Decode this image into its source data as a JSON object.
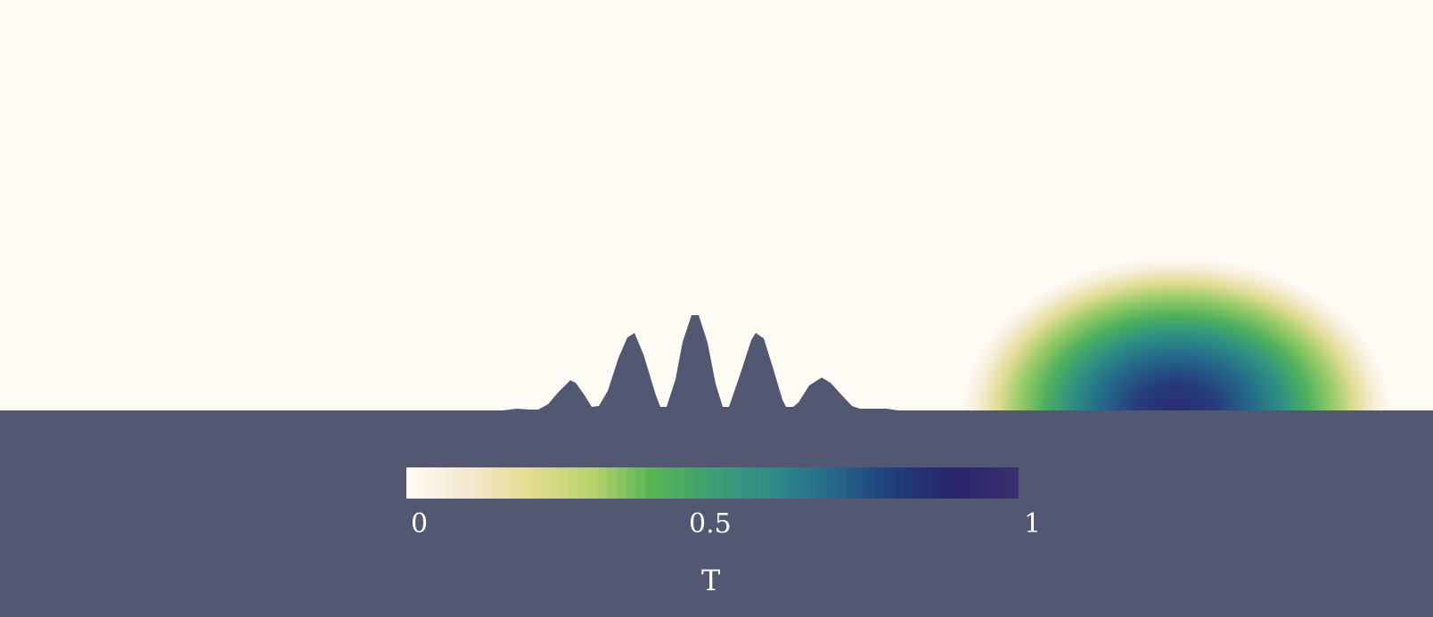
{
  "colors": {
    "background": "#535872",
    "fluid": "#fefbf5",
    "colormap": [
      "#fffaf2",
      "#f3e7cc",
      "#e3dc8c",
      "#b8d46c",
      "#55b653",
      "#3e9f72",
      "#2e8c8a",
      "#25688a",
      "#1f3e7c",
      "#2a246c",
      "#3b2e70"
    ]
  },
  "colorbar": {
    "title": "T",
    "ticks": [
      "0",
      "0.5",
      "1"
    ],
    "min": 0,
    "max": 1
  }
}
